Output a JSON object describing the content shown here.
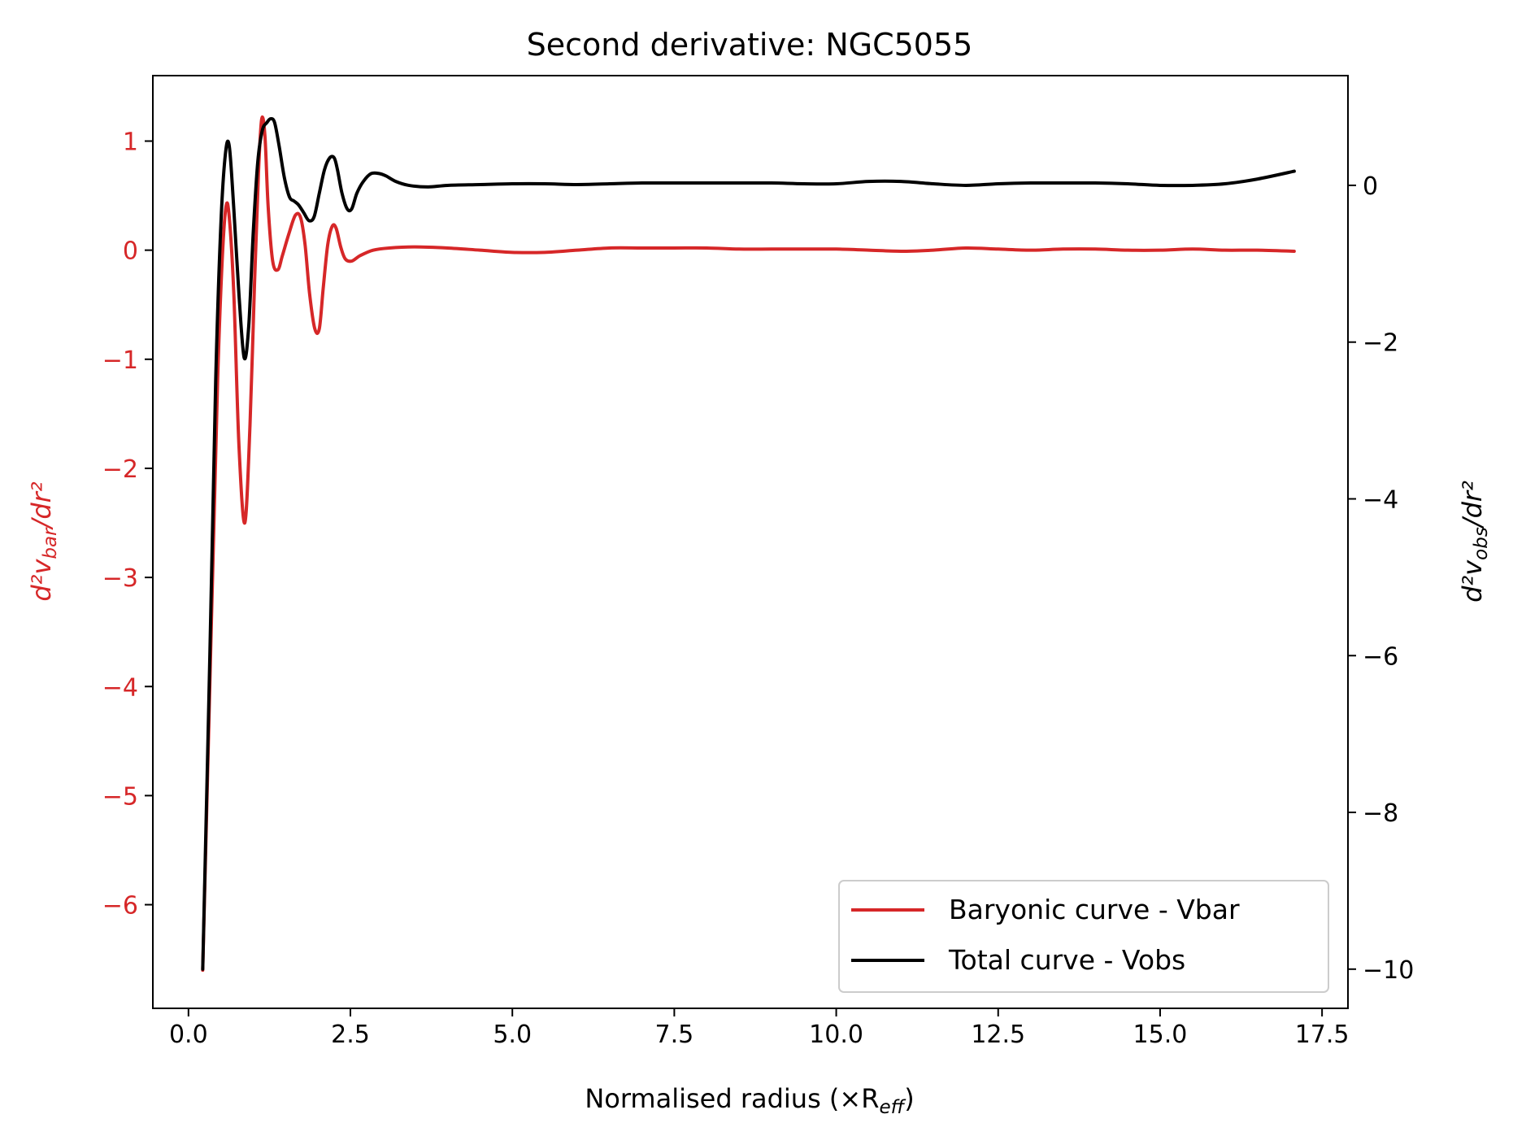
{
  "chart_data": {
    "type": "line",
    "title": "Second derivative: NGC5055",
    "xlabel": "Normalised radius (×R",
    "xlabel_sub": "eff",
    "xlabel_close": ")",
    "ylabel_left": "d²v",
    "ylabel_left_sub": "bar",
    "ylabel_left_tail": "/dr²",
    "ylabel_right": "d²v",
    "ylabel_right_sub": "obs",
    "ylabel_right_tail": "/dr²",
    "xlim": [
      -0.55,
      17.9
    ],
    "ylim_left": [
      -6.95,
      1.6
    ],
    "ylim_right": [
      -10.5,
      1.4
    ],
    "x_ticks": [
      0.0,
      2.5,
      5.0,
      7.5,
      10.0,
      12.5,
      15.0,
      17.5
    ],
    "x_tick_labels": [
      "0.0",
      "2.5",
      "5.0",
      "7.5",
      "10.0",
      "12.5",
      "15.0",
      "17.5"
    ],
    "y_left_ticks": [
      1,
      0,
      -1,
      -2,
      -3,
      -4,
      -5,
      -6
    ],
    "y_left_tick_labels": [
      "1",
      "0",
      "−1",
      "−2",
      "−3",
      "−4",
      "−5",
      "−6"
    ],
    "y_right_ticks": [
      0,
      -2,
      -4,
      -6,
      -8,
      -10
    ],
    "y_right_tick_labels": [
      "0",
      "−2",
      "−4",
      "−6",
      "−8",
      "−10"
    ],
    "grid": false,
    "legend_position": "lower-right",
    "colors": {
      "bar": "#d62728",
      "obs": "#000000",
      "axis": "#000000"
    },
    "series": [
      {
        "name": "Baryonic curve - Vbar",
        "axis": "left",
        "color": "#d62728",
        "x": [
          0.22,
          0.35,
          0.45,
          0.52,
          0.58,
          0.63,
          0.7,
          0.78,
          0.87,
          0.95,
          1.02,
          1.08,
          1.13,
          1.18,
          1.23,
          1.3,
          1.38,
          1.45,
          1.55,
          1.65,
          1.73,
          1.8,
          1.87,
          1.95,
          2.02,
          2.08,
          2.15,
          2.22,
          2.28,
          2.35,
          2.42,
          2.52,
          2.65,
          2.85,
          3.1,
          3.5,
          4.0,
          4.5,
          5.0,
          5.5,
          6.0,
          6.5,
          7.0,
          7.5,
          8.0,
          8.5,
          9.0,
          9.5,
          10.0,
          10.5,
          11.0,
          11.5,
          12.0,
          12.5,
          13.0,
          13.5,
          14.0,
          14.5,
          15.0,
          15.5,
          16.0,
          16.5,
          17.07
        ],
        "y": [
          -6.6,
          -3.5,
          -1.2,
          -0.1,
          0.4,
          0.3,
          -0.4,
          -1.8,
          -2.5,
          -1.6,
          -0.3,
          0.7,
          1.2,
          1.05,
          0.4,
          -0.1,
          -0.18,
          -0.05,
          0.15,
          0.32,
          0.3,
          0.05,
          -0.4,
          -0.72,
          -0.72,
          -0.35,
          0.05,
          0.22,
          0.2,
          0.03,
          -0.08,
          -0.1,
          -0.05,
          0.0,
          0.02,
          0.03,
          0.02,
          0.0,
          -0.02,
          -0.02,
          0.0,
          0.02,
          0.02,
          0.02,
          0.02,
          0.01,
          0.01,
          0.01,
          0.01,
          0.0,
          -0.01,
          0.0,
          0.02,
          0.01,
          0.0,
          0.01,
          0.01,
          0.0,
          0.0,
          0.01,
          0.0,
          0.0,
          -0.01
        ]
      },
      {
        "name": "Total curve - Vobs",
        "axis": "right",
        "color": "#000000",
        "x": [
          0.22,
          0.33,
          0.42,
          0.5,
          0.57,
          0.63,
          0.7,
          0.78,
          0.86,
          0.93,
          1.0,
          1.07,
          1.14,
          1.21,
          1.27,
          1.33,
          1.4,
          1.48,
          1.56,
          1.63,
          1.7,
          1.78,
          1.86,
          1.94,
          2.02,
          2.1,
          2.18,
          2.25,
          2.3,
          2.37,
          2.45,
          2.52,
          2.6,
          2.7,
          2.82,
          2.95,
          3.05,
          3.2,
          3.4,
          3.7,
          4.0,
          4.5,
          5.0,
          5.5,
          6.0,
          6.5,
          7.0,
          7.5,
          8.0,
          8.5,
          9.0,
          9.5,
          10.0,
          10.5,
          11.0,
          11.5,
          12.0,
          12.5,
          13.0,
          13.5,
          14.0,
          14.5,
          15.0,
          15.5,
          16.0,
          16.5,
          17.07
        ],
        "y": [
          -10.0,
          -6.0,
          -2.5,
          -0.5,
          0.4,
          0.5,
          -0.3,
          -1.4,
          -2.2,
          -1.8,
          -0.6,
          0.3,
          0.7,
          0.8,
          0.85,
          0.8,
          0.5,
          0.1,
          -0.15,
          -0.2,
          -0.25,
          -0.35,
          -0.45,
          -0.4,
          -0.1,
          0.2,
          0.35,
          0.35,
          0.2,
          -0.1,
          -0.3,
          -0.3,
          -0.1,
          0.05,
          0.15,
          0.15,
          0.12,
          0.05,
          0.0,
          -0.02,
          0.0,
          0.01,
          0.02,
          0.02,
          0.01,
          0.02,
          0.03,
          0.03,
          0.03,
          0.03,
          0.03,
          0.02,
          0.02,
          0.05,
          0.05,
          0.02,
          0.0,
          0.02,
          0.03,
          0.03,
          0.03,
          0.02,
          0.0,
          0.0,
          0.02,
          0.08,
          0.18
        ]
      }
    ]
  }
}
